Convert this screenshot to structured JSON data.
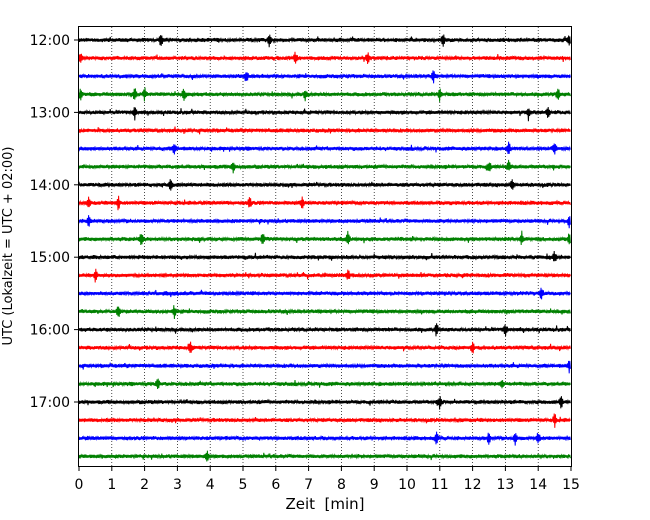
{
  "chart_data": {
    "type": "line",
    "title": "",
    "xlabel": "Zeit  [min]",
    "ylabel": "UTC (Lokalzeit = UTC + 02:00)",
    "xlim": [
      0,
      15
    ],
    "x_ticks": [
      "0",
      "1",
      "2",
      "3",
      "4",
      "5",
      "6",
      "7",
      "8",
      "9",
      "10",
      "11",
      "12",
      "13",
      "14",
      "15"
    ],
    "y_ticks": [
      {
        "label": "12:00",
        "trace_index": 0
      },
      {
        "label": "13:00",
        "trace_index": 4
      },
      {
        "label": "14:00",
        "trace_index": 8
      },
      {
        "label": "15:00",
        "trace_index": 12
      },
      {
        "label": "16:00",
        "trace_index": 16
      },
      {
        "label": "17:00",
        "trace_index": 20
      }
    ],
    "grid": "vertical dotted lines at each minute",
    "trace_interval_min": 15,
    "trace_colors": [
      "#000000",
      "#ff0000",
      "#0000ff",
      "#008000"
    ],
    "traces": [
      {
        "start": "12:00",
        "events_min": [
          2.5,
          5.8,
          11.1,
          14.95
        ]
      },
      {
        "start": "12:15",
        "events_min": [
          0.05,
          6.6,
          8.8
        ]
      },
      {
        "start": "12:30",
        "events_min": [
          5.1,
          10.8
        ]
      },
      {
        "start": "12:45",
        "events_min": [
          0.05,
          1.7,
          2.0,
          3.2,
          6.9,
          11.0,
          14.6
        ]
      },
      {
        "start": "13:00",
        "events_min": [
          1.7,
          13.7,
          14.3
        ]
      },
      {
        "start": "13:15",
        "events_min": []
      },
      {
        "start": "13:30",
        "events_min": [
          2.9,
          13.1,
          14.5
        ]
      },
      {
        "start": "13:45",
        "events_min": [
          4.7,
          12.5,
          13.1
        ]
      },
      {
        "start": "14:00",
        "events_min": [
          2.8,
          13.2
        ]
      },
      {
        "start": "14:15",
        "events_min": [
          0.3,
          1.2,
          5.2,
          6.8
        ]
      },
      {
        "start": "14:30",
        "events_min": [
          0.3,
          14.95
        ]
      },
      {
        "start": "14:45",
        "events_min": [
          1.9,
          5.6,
          8.2,
          13.5,
          14.95
        ]
      },
      {
        "start": "15:00",
        "events_min": [
          14.5
        ]
      },
      {
        "start": "15:15",
        "events_min": [
          0.5,
          8.2
        ]
      },
      {
        "start": "15:30",
        "events_min": [
          14.1
        ]
      },
      {
        "start": "15:45",
        "events_min": [
          1.2,
          2.9
        ]
      },
      {
        "start": "16:00",
        "events_min": [
          10.9,
          13.0
        ]
      },
      {
        "start": "16:15",
        "events_min": [
          3.4,
          12.0
        ]
      },
      {
        "start": "16:30",
        "events_min": [
          14.95
        ]
      },
      {
        "start": "16:45",
        "events_min": [
          2.4,
          12.9
        ]
      },
      {
        "start": "17:00",
        "events_min": [
          11.0,
          14.7
        ]
      },
      {
        "start": "17:15",
        "events_min": [
          14.5
        ]
      },
      {
        "start": "17:30",
        "events_min": [
          10.9,
          12.5,
          13.3,
          14.0
        ]
      },
      {
        "start": "17:45",
        "events_min": [
          3.9
        ]
      }
    ]
  }
}
